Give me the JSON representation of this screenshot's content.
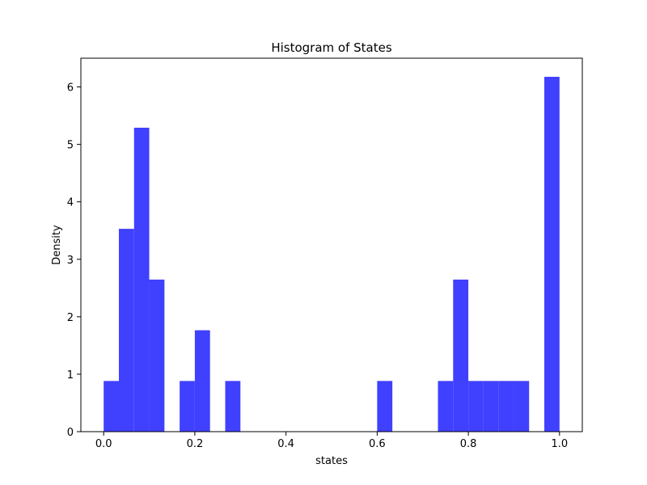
{
  "chart_data": {
    "type": "bar",
    "title": "Histogram of States",
    "xlabel": "states",
    "ylabel": "Density",
    "xlim": [
      -0.05,
      1.05
    ],
    "ylim": [
      0,
      6.5
    ],
    "x_ticks": [
      0.0,
      0.2,
      0.4,
      0.6,
      0.8,
      1.0
    ],
    "x_tick_labels": [
      "0.0",
      "0.2",
      "0.4",
      "0.6",
      "0.8",
      "1.0"
    ],
    "y_ticks": [
      0,
      1,
      2,
      3,
      4,
      5,
      6
    ],
    "y_tick_labels": [
      "0",
      "1",
      "2",
      "3",
      "4",
      "5",
      "6"
    ],
    "bar_color": "#4040ff",
    "bins": 30,
    "bin_range": [
      0,
      1
    ],
    "values": [
      0.882,
      3.53,
      5.29,
      2.647,
      0,
      0.882,
      1.765,
      0,
      0.882,
      0,
      0,
      0,
      0,
      0,
      0,
      0,
      0,
      0,
      0.882,
      0,
      0,
      0,
      0.882,
      2.647,
      0.882,
      0.882,
      0.882,
      0.882,
      0,
      6.176
    ],
    "grid": false,
    "legend": "none"
  }
}
